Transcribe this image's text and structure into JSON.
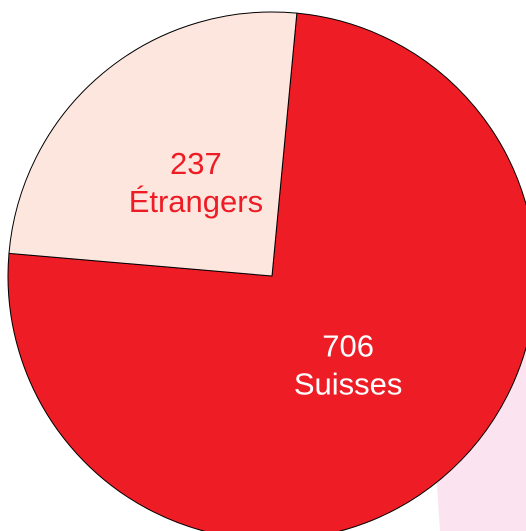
{
  "chart_data": {
    "type": "pie",
    "categories": [
      "Étrangers",
      "Suisses"
    ],
    "values": [
      237,
      706
    ],
    "colors": [
      "#fce6de",
      "#ee1c25"
    ],
    "label_colors": [
      "#ee1c25",
      "#ffffff"
    ]
  }
}
